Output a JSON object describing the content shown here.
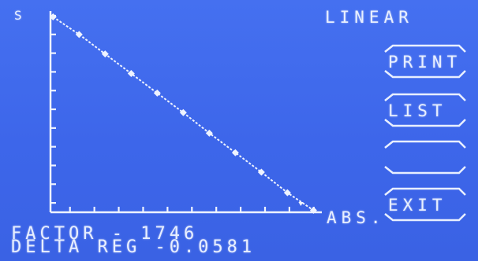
{
  "header": {
    "mode": "LINEAR"
  },
  "softkeys": [
    {
      "label": "PRINT"
    },
    {
      "label": "LIST"
    },
    {
      "label": ""
    },
    {
      "label": "EXIT"
    }
  ],
  "footer": {
    "factor_line": "FACTOR  -  1746",
    "delta_line": "DELTA REG   -0.0581"
  },
  "chart_data": {
    "type": "line",
    "xlabel": "ABS.",
    "ylabel": "S",
    "x": [
      0,
      1,
      2,
      3,
      4,
      5,
      6,
      7,
      8,
      9,
      10
    ],
    "values": [
      10.0,
      9.1,
      8.1,
      7.1,
      6.1,
      5.1,
      4.05,
      3.05,
      2.05,
      1.0,
      0.1
    ],
    "xlim": [
      -0.1,
      10.2
    ],
    "ylim": [
      0,
      10.3
    ],
    "grid": false,
    "x_ticks": 11,
    "y_ticks": 11
  },
  "colors": {
    "background": "#3e64e6",
    "foreground": "#eef3ff"
  }
}
